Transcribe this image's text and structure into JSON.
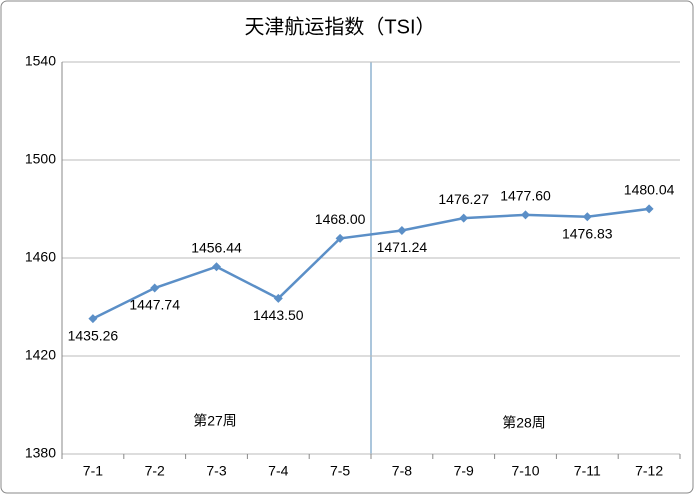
{
  "chart_data": {
    "type": "line",
    "title": "天津航运指数（TSI）",
    "categories": [
      "7-1",
      "7-2",
      "7-3",
      "7-4",
      "7-5",
      "7-8",
      "7-9",
      "7-10",
      "7-11",
      "7-12"
    ],
    "series": [
      {
        "name": "TSI",
        "color": "#5b8fc7",
        "values": [
          1435.26,
          1447.74,
          1456.44,
          1443.5,
          1468,
          1471.24,
          1476.27,
          1477.6,
          1476.83,
          1480.04
        ],
        "value_labels": [
          "1435.26",
          "1447.74",
          "1456.44",
          "1443.50",
          "1468.00",
          "1471.24",
          "1476.27",
          "1477.60",
          "1476.83",
          "1480.04"
        ]
      }
    ],
    "annotations": [
      "第27周",
      "第28周"
    ],
    "ylim": [
      1380,
      1540
    ],
    "yticks": [
      1380,
      1420,
      1460,
      1500,
      1540
    ],
    "grid": true
  }
}
